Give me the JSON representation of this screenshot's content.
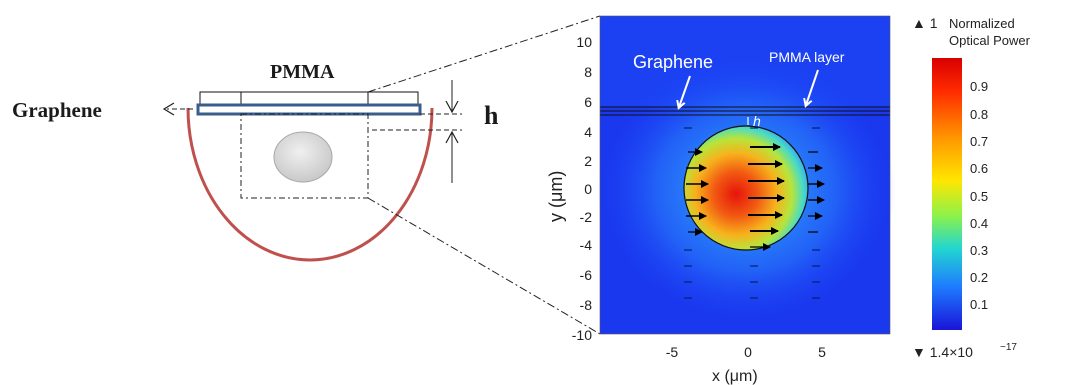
{
  "schematic": {
    "pmma_label": "PMMA",
    "graphene_label": "Graphene",
    "h_label": "h"
  },
  "field_plot": {
    "graphene_label": "Graphene",
    "pmma_layer_label": "PMMA layer",
    "h_label": "h",
    "y_axis_label": "y (μm)",
    "x_axis_label": "x (μm)",
    "y_ticks": [
      "10",
      "8",
      "6",
      "4",
      "2",
      "0",
      "-2",
      "-4",
      "-6",
      "-8",
      "-10"
    ],
    "x_ticks": [
      "-5",
      "0",
      "5"
    ],
    "colorbar": {
      "max_marker": "▲ 1",
      "title_line1": "Normalized",
      "title_line2": "Optical Power",
      "ticks": [
        "0.9",
        "0.8",
        "0.7",
        "0.6",
        "0.5",
        "0.4",
        "0.3",
        "0.2",
        "0.1"
      ],
      "min_marker": "▼ 1.4×10",
      "min_exponent": "−17"
    }
  }
}
